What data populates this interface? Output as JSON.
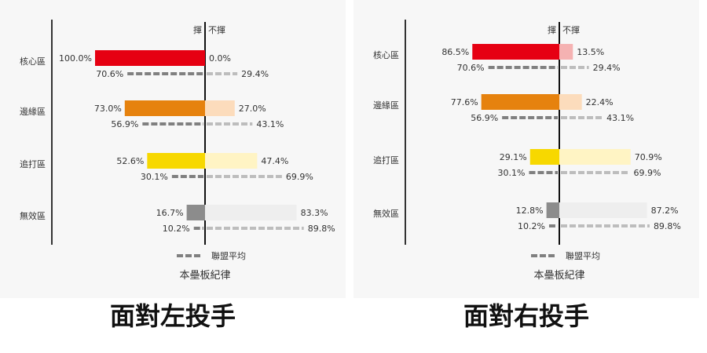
{
  "chart_data": [
    {
      "type": "bar",
      "panel_caption": "面對左投手",
      "header_left": "揮",
      "header_right": "不揮",
      "categories": [
        "核心區",
        "邊緣區",
        "追打區",
        "無效區"
      ],
      "series": [
        {
          "name": "本壘板紀律",
          "swing": [
            100.0,
            73.0,
            52.6,
            16.7
          ],
          "no_swing": [
            0.0,
            27.0,
            47.4,
            83.3
          ]
        },
        {
          "name": "聯盟平均",
          "swing": [
            70.6,
            56.9,
            30.1,
            10.2
          ],
          "no_swing": [
            29.4,
            43.1,
            69.9,
            89.8
          ]
        }
      ],
      "swing_labels": [
        "100.0%",
        "73.0%",
        "52.6%",
        "16.7%"
      ],
      "no_swing_labels": [
        "0.0%",
        "27.0%",
        "47.4%",
        "83.3%"
      ],
      "avg_swing_labels": [
        "70.6%",
        "56.9%",
        "30.1%",
        "10.2%"
      ],
      "avg_no_swing_labels": [
        "29.4%",
        "43.1%",
        "69.9%",
        "89.8%"
      ],
      "legend_label": "聯盟平均",
      "xlabel": "本壘板紀律",
      "xlim": [
        0,
        100
      ]
    },
    {
      "type": "bar",
      "panel_caption": "面對右投手",
      "header_left": "揮",
      "header_right": "不揮",
      "categories": [
        "核心區",
        "邊緣區",
        "追打區",
        "無效區"
      ],
      "series": [
        {
          "name": "本壘板紀律",
          "swing": [
            86.5,
            77.6,
            29.1,
            12.8
          ],
          "no_swing": [
            13.5,
            22.4,
            70.9,
            87.2
          ]
        },
        {
          "name": "聯盟平均",
          "swing": [
            70.6,
            56.9,
            30.1,
            10.2
          ],
          "no_swing": [
            29.4,
            43.1,
            69.9,
            89.8
          ]
        }
      ],
      "swing_labels": [
        "86.5%",
        "77.6%",
        "29.1%",
        "12.8%"
      ],
      "no_swing_labels": [
        "13.5%",
        "22.4%",
        "70.9%",
        "87.2%"
      ],
      "avg_swing_labels": [
        "70.6%",
        "56.9%",
        "30.1%",
        "10.2%"
      ],
      "avg_no_swing_labels": [
        "29.4%",
        "43.1%",
        "69.9%",
        "89.8%"
      ],
      "legend_label": "聯盟平均",
      "xlabel": "本壘板紀律",
      "xlim": [
        0,
        100
      ]
    }
  ],
  "colors": {
    "swing": [
      "#e60012",
      "#e6820e",
      "#f7d800",
      "#8c8c8c"
    ],
    "no_swing": [
      "#f5b2b2",
      "#fcdcbc",
      "#fff4c4",
      "#eeeeee"
    ],
    "avg_swing": "#808080",
    "avg_no_swing": "#bdbdbd"
  }
}
